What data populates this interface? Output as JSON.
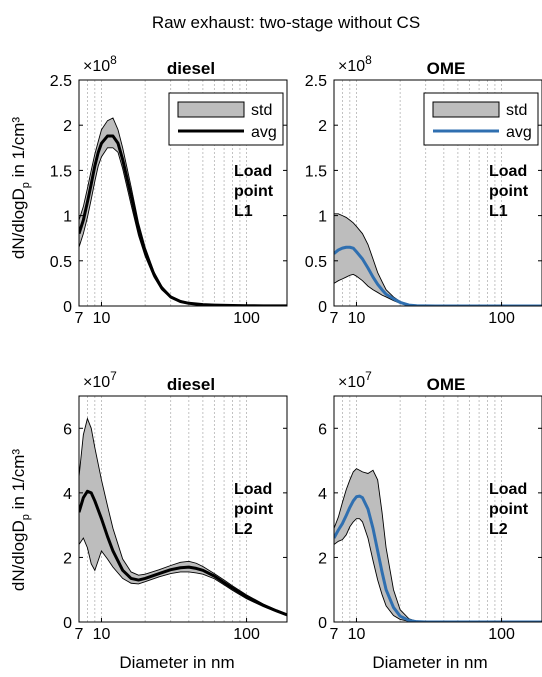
{
  "figure": {
    "title": "Raw exhaust: two-stage without CS",
    "ylabel_main": "dN/dlogD",
    "ylabel_sub": "p",
    "ylabel_tail": " in 1/cm³",
    "xlabel": "Diameter in nm"
  },
  "colors": {
    "diesel_avg": "#000000",
    "ome_avg": "#2f6fb0",
    "band_fill": "#bdbdbd",
    "band_edge": "#000000",
    "grid": "#b4b4b4"
  },
  "chart_data": [
    {
      "id": "diesel-L1",
      "type": "area",
      "title": "diesel",
      "xscale": "log",
      "xlim": [
        7,
        190
      ],
      "xticks": [
        7,
        10,
        100
      ],
      "xtick_labels": [
        "7",
        "10",
        "100"
      ],
      "ylim": [
        0,
        2.5
      ],
      "yticks": [
        0,
        0.5,
        1,
        1.5,
        2,
        2.5
      ],
      "ytick_labels": [
        "0",
        "0.5",
        "1",
        "1.5",
        "2",
        "2.5"
      ],
      "multiplier": "×10",
      "exponent": "8",
      "legend": {
        "position": "top-right",
        "entries": [
          "std",
          "avg"
        ]
      },
      "annotation": [
        "Load",
        "point",
        "L1"
      ],
      "avg_color": "#000000",
      "x": [
        7,
        7.5,
        8,
        8.5,
        9,
        9.5,
        10,
        11,
        12,
        13,
        14,
        16,
        18,
        20,
        23,
        26,
        30,
        35,
        40,
        50,
        60,
        80,
        100,
        130,
        190
      ],
      "avg": [
        0.8,
        0.95,
        1.15,
        1.35,
        1.55,
        1.7,
        1.8,
        1.88,
        1.88,
        1.8,
        1.62,
        1.22,
        0.85,
        0.6,
        0.35,
        0.2,
        0.1,
        0.05,
        0.03,
        0.015,
        0.01,
        0.005,
        0.003,
        0.002,
        0.001
      ],
      "upper": [
        0.95,
        1.1,
        1.3,
        1.5,
        1.68,
        1.82,
        1.95,
        2.05,
        2.08,
        1.95,
        1.75,
        1.32,
        0.92,
        0.65,
        0.38,
        0.22,
        0.11,
        0.06,
        0.035,
        0.018,
        0.012,
        0.006,
        0.004,
        0.002,
        0.001
      ],
      "lower": [
        0.65,
        0.8,
        0.98,
        1.18,
        1.38,
        1.55,
        1.65,
        1.75,
        1.75,
        1.7,
        1.52,
        1.12,
        0.78,
        0.55,
        0.32,
        0.18,
        0.09,
        0.045,
        0.025,
        0.012,
        0.008,
        0.004,
        0.002,
        0.001,
        0.0005
      ]
    },
    {
      "id": "ome-L1",
      "type": "area",
      "title": "OME",
      "xscale": "log",
      "xlim": [
        7,
        190
      ],
      "xticks": [
        7,
        10,
        100
      ],
      "xtick_labels": [
        "7",
        "10",
        "100"
      ],
      "ylim": [
        0,
        2.5
      ],
      "yticks": [
        0,
        0.5,
        1,
        1.5,
        2,
        2.5
      ],
      "ytick_labels": [
        "0",
        "0.5",
        "1",
        "1.5",
        "2",
        "2.5"
      ],
      "multiplier": "×10",
      "exponent": "8",
      "legend": {
        "position": "top-right",
        "entries": [
          "std",
          "avg"
        ]
      },
      "annotation": [
        "Load",
        "point",
        "L1"
      ],
      "avg_color": "#2f6fb0",
      "x": [
        7,
        7.5,
        8,
        8.5,
        9,
        9.5,
        10,
        11,
        12,
        13,
        14,
        15,
        16,
        18,
        20,
        23,
        26,
        30,
        35,
        40,
        50,
        70,
        100,
        190
      ],
      "avg": [
        0.58,
        0.62,
        0.64,
        0.65,
        0.65,
        0.64,
        0.6,
        0.52,
        0.42,
        0.32,
        0.24,
        0.18,
        0.13,
        0.08,
        0.04,
        0.01,
        0.003,
        0.001,
        0,
        0,
        0,
        0,
        0,
        0
      ],
      "upper": [
        1.02,
        1.02,
        1.0,
        0.98,
        0.95,
        0.92,
        0.88,
        0.8,
        0.68,
        0.52,
        0.37,
        0.27,
        0.18,
        0.1,
        0.05,
        0.015,
        0.005,
        0.002,
        0,
        0,
        0,
        0,
        0,
        0
      ],
      "lower": [
        0.25,
        0.28,
        0.3,
        0.32,
        0.34,
        0.35,
        0.33,
        0.28,
        0.22,
        0.18,
        0.15,
        0.12,
        0.1,
        0.06,
        0.03,
        0.008,
        0.002,
        0.001,
        0,
        0,
        0,
        0,
        0,
        0
      ]
    },
    {
      "id": "diesel-L2",
      "type": "area",
      "title": "diesel",
      "xscale": "log",
      "xlim": [
        7,
        190
      ],
      "xticks": [
        7,
        10,
        100
      ],
      "xtick_labels": [
        "7",
        "10",
        "100"
      ],
      "ylim": [
        0,
        7
      ],
      "yticks": [
        0,
        2,
        4,
        6
      ],
      "ytick_labels": [
        "0",
        "2",
        "4",
        "6"
      ],
      "multiplier": "×10",
      "exponent": "7",
      "legend": null,
      "annotation": [
        "Load",
        "point",
        "L2"
      ],
      "avg_color": "#000000",
      "x": [
        7,
        7.5,
        8,
        8.5,
        9,
        10,
        11,
        12,
        14,
        16,
        18,
        20,
        25,
        30,
        35,
        40,
        45,
        50,
        60,
        70,
        80,
        100,
        130,
        160,
        190
      ],
      "avg": [
        3.4,
        3.85,
        4.05,
        4.0,
        3.75,
        3.2,
        2.65,
        2.2,
        1.6,
        1.35,
        1.3,
        1.35,
        1.5,
        1.62,
        1.68,
        1.7,
        1.66,
        1.6,
        1.42,
        1.22,
        1.05,
        0.78,
        0.52,
        0.35,
        0.22
      ],
      "upper": [
        4.5,
        5.8,
        6.3,
        6.0,
        5.4,
        4.4,
        3.6,
        2.9,
        1.95,
        1.55,
        1.45,
        1.48,
        1.62,
        1.75,
        1.85,
        1.88,
        1.82,
        1.72,
        1.5,
        1.3,
        1.12,
        0.84,
        0.56,
        0.38,
        0.24
      ],
      "lower": [
        2.4,
        2.6,
        2.3,
        1.8,
        1.6,
        2.2,
        1.95,
        1.7,
        1.35,
        1.2,
        1.18,
        1.25,
        1.4,
        1.5,
        1.55,
        1.55,
        1.52,
        1.48,
        1.34,
        1.15,
        0.98,
        0.72,
        0.48,
        0.32,
        0.2
      ]
    },
    {
      "id": "ome-L2",
      "type": "area",
      "title": "OME",
      "xscale": "log",
      "xlim": [
        7,
        190
      ],
      "xticks": [
        7,
        10,
        100
      ],
      "xtick_labels": [
        "7",
        "10",
        "100"
      ],
      "ylim": [
        0,
        7
      ],
      "yticks": [
        0,
        2,
        4,
        6
      ],
      "ytick_labels": [
        "0",
        "2",
        "4",
        "6"
      ],
      "multiplier": "×10",
      "exponent": "7",
      "legend": null,
      "annotation": [
        "Load",
        "point",
        "L2"
      ],
      "avg_color": "#2f6fb0",
      "x": [
        7,
        7.5,
        8,
        8.5,
        9,
        9.5,
        10,
        10.5,
        11,
        12,
        13,
        14,
        15,
        16,
        18,
        20,
        23,
        26,
        30,
        35,
        40,
        50,
        70,
        100,
        190
      ],
      "avg": [
        2.6,
        2.85,
        3.05,
        3.3,
        3.55,
        3.75,
        3.88,
        3.9,
        3.85,
        3.5,
        2.9,
        2.2,
        1.55,
        1.0,
        0.45,
        0.18,
        0.05,
        0.01,
        0.002,
        0,
        0,
        0,
        0,
        0,
        0
      ],
      "upper": [
        2.9,
        3.25,
        3.7,
        4.1,
        4.4,
        4.65,
        4.75,
        4.7,
        4.65,
        4.6,
        4.7,
        4.4,
        3.4,
        2.3,
        1.0,
        0.38,
        0.1,
        0.02,
        0.004,
        0,
        0,
        0,
        0,
        0,
        0
      ],
      "lower": [
        2.4,
        2.5,
        2.55,
        2.7,
        2.95,
        3.1,
        3.2,
        3.2,
        3.1,
        2.6,
        1.9,
        1.3,
        0.85,
        0.5,
        0.2,
        0.08,
        0.02,
        0.004,
        0.001,
        0,
        0,
        0,
        0,
        0,
        0
      ]
    }
  ]
}
